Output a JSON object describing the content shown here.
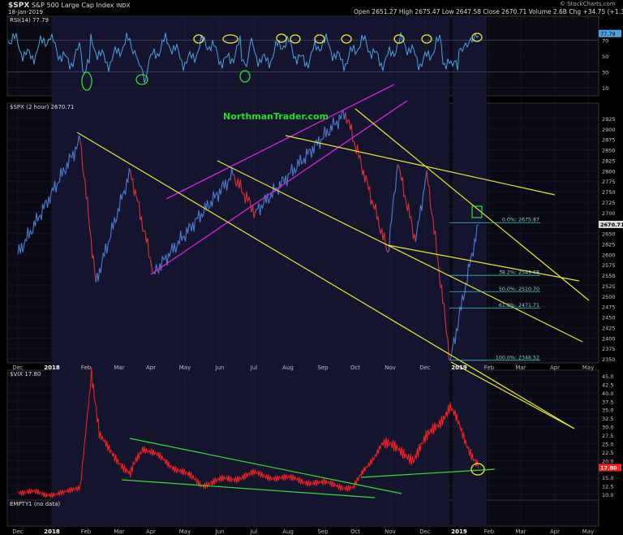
{
  "header": {
    "symbol": "$SPX",
    "name": "S&P 500 Large Cap Index",
    "exchange": "INDX",
    "date": "18-Jan-2019",
    "ohlc": "Open 2651.27  High 2675.47  Low 2647.58  Close 2670.71  Volume 2.6B  Chg +34.75 (+1.32%)",
    "credit": "© StockCharts.com"
  },
  "watermark": "NorthmanTrader.com",
  "colors": {
    "background": "#000000",
    "panel": "#0b0b2a",
    "rsi": "#4aa3e0",
    "price_up": "#4a7bd0",
    "price_down": "#e03030",
    "vix": "#ff2020",
    "channel": "#e020e0",
    "trendline": "#e8e830",
    "vix_lines": "#30e030",
    "fib": "#40c0c0",
    "watermark": "#20e020"
  },
  "chart_data": [
    {
      "type": "line",
      "title": "RSI(14) 77.79",
      "series": [
        {
          "name": "RSI(14)",
          "last": 77.79
        }
      ],
      "y_ticks": [
        10,
        30,
        50,
        70
      ],
      "last_label": "77.79",
      "overbought": 70,
      "oversold": 30
    },
    {
      "type": "line",
      "title": "$SPX (2 hour) 2670.71",
      "y_ticks": [
        2350,
        2375,
        2400,
        2425,
        2450,
        2475,
        2500,
        2525,
        2550,
        2575,
        2600,
        2625,
        2650,
        2675,
        2700,
        2725,
        2750,
        2775,
        2800,
        2825,
        2850,
        2875,
        2900,
        2925
      ],
      "last_label": "2670.71",
      "fib_levels": [
        {
          "label": "0.0%: 2675.87",
          "value": 2675.87
        },
        {
          "label": "38.2%: 2549.68",
          "value": 2549.68
        },
        {
          "label": "50.0%: 2510.70",
          "value": 2510.7
        },
        {
          "label": "61.8%: 2471.71",
          "value": 2471.71
        },
        {
          "label": "100.0%: 2346.52",
          "value": 2346.52
        }
      ],
      "key_points": [
        {
          "x": "2018-01-26",
          "y": 2872
        },
        {
          "x": "2018-02-09",
          "y": 2533
        },
        {
          "x": "2018-03-12",
          "y": 2800
        },
        {
          "x": "2018-04-02",
          "y": 2555
        },
        {
          "x": "2018-06-12",
          "y": 2790
        },
        {
          "x": "2018-07-02",
          "y": 2700
        },
        {
          "x": "2018-09-21",
          "y": 2940
        },
        {
          "x": "2018-10-29",
          "y": 2605
        },
        {
          "x": "2018-11-07",
          "y": 2815
        },
        {
          "x": "2018-11-23",
          "y": 2630
        },
        {
          "x": "2018-12-03",
          "y": 2800
        },
        {
          "x": "2018-12-24",
          "y": 2346
        },
        {
          "x": "2019-01-18",
          "y": 2671
        }
      ]
    },
    {
      "type": "line",
      "title": "$VIX 17.80",
      "y_ticks": [
        10.0,
        12.5,
        15.0,
        17.5,
        20.0,
        22.5,
        25.0,
        27.5,
        30.0,
        32.5,
        35.0,
        37.5,
        40.0,
        42.5,
        45.0
      ],
      "last_label": "17.80",
      "key_points": [
        {
          "x": "2018-01-02",
          "y": 10
        },
        {
          "x": "2018-01-26",
          "y": 11.5
        },
        {
          "x": "2018-02-05",
          "y": 45
        },
        {
          "x": "2018-02-12",
          "y": 27
        },
        {
          "x": "2018-03-12",
          "y": 16
        },
        {
          "x": "2018-03-23",
          "y": 24
        },
        {
          "x": "2018-05-15",
          "y": 13
        },
        {
          "x": "2018-07-01",
          "y": 16
        },
        {
          "x": "2018-09-28",
          "y": 12
        },
        {
          "x": "2018-10-24",
          "y": 25
        },
        {
          "x": "2018-11-21",
          "y": 21
        },
        {
          "x": "2018-12-24",
          "y": 36
        },
        {
          "x": "2019-01-18",
          "y": 17.8
        }
      ]
    },
    {
      "type": "line",
      "title": "EMPTY1 (no data)"
    }
  ],
  "x_axis": {
    "labels": [
      "Dec",
      "2018",
      "Feb",
      "Mar",
      "Apr",
      "May",
      "Jun",
      "Jul",
      "Aug",
      "Sep",
      "Oct",
      "Nov",
      "Dec",
      "2019",
      "Feb",
      "Mar",
      "Apr",
      "May"
    ],
    "bold": [
      "2018",
      "2019"
    ]
  }
}
